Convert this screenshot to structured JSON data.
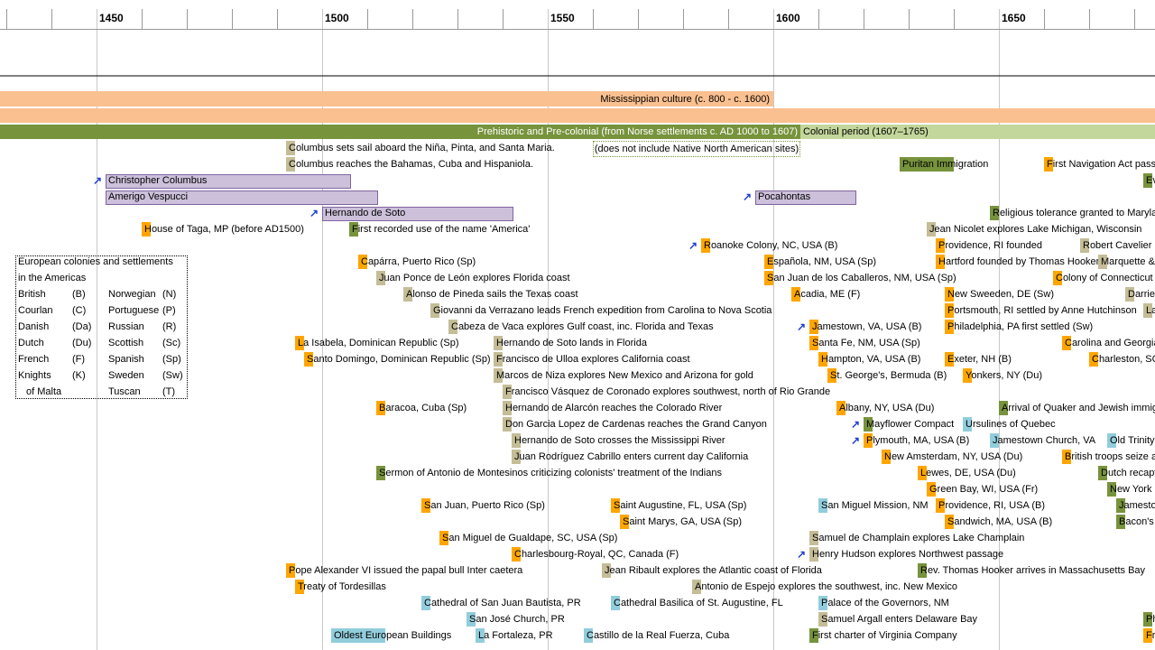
{
  "axis_labels": [
    "1450",
    "1500",
    "1550",
    "1600",
    "1650"
  ],
  "bands": {
    "mississippian": "Mississippian culture (c. 800 - c. 1600)",
    "precolonial": "Prehistoric and Pre-colonial (from Norse settlements c. AD 1000 to 1607)",
    "colonial": "Colonial period (1607–1765)"
  },
  "note": "(does not include Native North American sites)",
  "people": [
    "Christopher Columbus",
    "Amerigo Vespucci",
    "Hernando de Soto",
    "Pocahontas"
  ],
  "legend": {
    "title": [
      "European colonies and settlements",
      "in the Americas"
    ],
    "left": [
      [
        "British",
        "(B)"
      ],
      [
        "Courlan",
        "(C)"
      ],
      [
        "Danish",
        "(Da)"
      ],
      [
        "Dutch",
        "(Du)"
      ],
      [
        "French",
        "(F)"
      ],
      [
        "Knights",
        "(K)"
      ]
    ],
    "left_continuation": "of Malta",
    "right": [
      [
        "Norwegian",
        "(N)"
      ],
      [
        "Portuguese",
        "(P)"
      ],
      [
        "Russian",
        "(R)"
      ],
      [
        "Scottish",
        "(Sc)"
      ],
      [
        "Spanish",
        "(Sp)"
      ],
      [
        "Sweden",
        "(Sw)"
      ],
      [
        "Tuscan",
        "(T)"
      ]
    ]
  },
  "events": [
    "Columbus sets sail aboard the Niña, Pinta, and Santa Maria.",
    "Columbus reaches the Bahamas, Cuba and Hispaniola.",
    "Puritan Immigration",
    "First Navigation Act pass",
    "Ev",
    "Religious tolerance granted to Marylan",
    "House of Taga, MP (before AD1500)",
    "First recorded use of the name 'America'",
    "Jean Nicolet explores Lake Michigan, Wisconsin",
    "Roanoke Colony, NC, USA (B)",
    "Providence, RI founded",
    "Robert Cavelier L",
    "Capárra, Puerto Rico (Sp)",
    "Española, NM, USA (Sp)",
    "Hartford founded by Thomas Hooker",
    "Marquette &",
    "Juan Ponce de León explores Florida coast",
    "San Juan de los Caballeros, NM, USA (Sp)",
    "Colony of Connecticut",
    "Alonso de Pineda sails the Texas coast",
    "Acadia, ME (F)",
    "New Sweeden, DE (Sw)",
    "Darrie",
    "Giovanni da Verrazano leads French expedition from Carolina to Nova Scotia",
    "Portsmouth, RI settled by Anne Hutchinson",
    "La",
    "Cabeza de Vaca explores Gulf coast, inc. Florida and Texas",
    "Jamestown, VA, USA (B)",
    "Philadelphia, PA first settled (Sw)",
    "La Isabela, Dominican Republic (Sp)",
    "Hernando de Soto lands in Florida",
    "Santa Fe, NM, USA (Sp)",
    "Carolina and Georgia",
    "Santo Domingo, Dominican Republic (Sp)",
    "Francisco de Ulloa explores California coast",
    "Hampton, VA, USA (B)",
    "Exeter, NH (B)",
    "Charleston, SC",
    "Marcos de Niza explores New Mexico and Arizona for gold",
    "St. George's, Bermuda (B)",
    "Yonkers, NY (Du)",
    "Francisco Vásquez de Coronado explores southwest, north of Rio Grande",
    "Baracoa, Cuba (Sp)",
    "Hernando de Alarcón reaches the Colorado River",
    "Albany, NY, USA (Du)",
    "Arrival of Quaker and Jewish immig",
    "Don Garcia Lopez de Cardenas reaches the Grand Canyon",
    "Mayflower Compact",
    "Ursulines of Quebec",
    "Hernando de Soto crosses the Mississippi River",
    "Plymouth, MA, USA (B)",
    "Jamestown Church, VA",
    "Old Trinity",
    "Juan Rodríguez Cabrillo enters current day California",
    "New Amsterdam, NY, USA (Du)",
    "British troops seize a",
    "Sermon of Antonio de Montesinos criticizing colonists' treatment of the Indians",
    "Lewes, DE, USA (Du)",
    "Dutch recapt",
    "Green Bay, WI, USA (Fr)",
    "New York",
    "San Juan, Puerto Rico (Sp)",
    "Saint Augustine, FL, USA (Sp)",
    "San Miguel Mission, NM",
    "Providence, RI, USA (B)",
    "Jamesto",
    "Saint Marys, GA, USA (Sp)",
    "Sandwich, MA, USA (B)",
    "Bacon's",
    "San Miguel de Gualdape, SC, USA (Sp)",
    "Samuel de Champlain explores Lake Champlain",
    "Charlesbourg-Royal, QC, Canada (F)",
    "Henry Hudson explores Northwest passage",
    "Pope Alexander VI issued the papal bull Inter caetera",
    "Jean Ribault explores the Atlantic coast of Florida",
    "Rev. Thomas Hooker arrives in Massachusetts Bay",
    "Treaty of Tordesillas",
    "Antonio de Espejo explores the southwest, inc. New Mexico",
    "Cathedral of San Juan Bautista, PR",
    "Cathedral Basilica of St. Augustine, FL",
    "Palace of the Governors, NM",
    "San José Church, PR",
    "Samuel Argall enters Delaware Bay",
    "Ph",
    "Oldest European Buildings",
    "La Fortaleza, PR",
    "Castillo de la Real Fuerza, Cuba",
    "First charter of Virginia Company",
    "Fr"
  ]
}
